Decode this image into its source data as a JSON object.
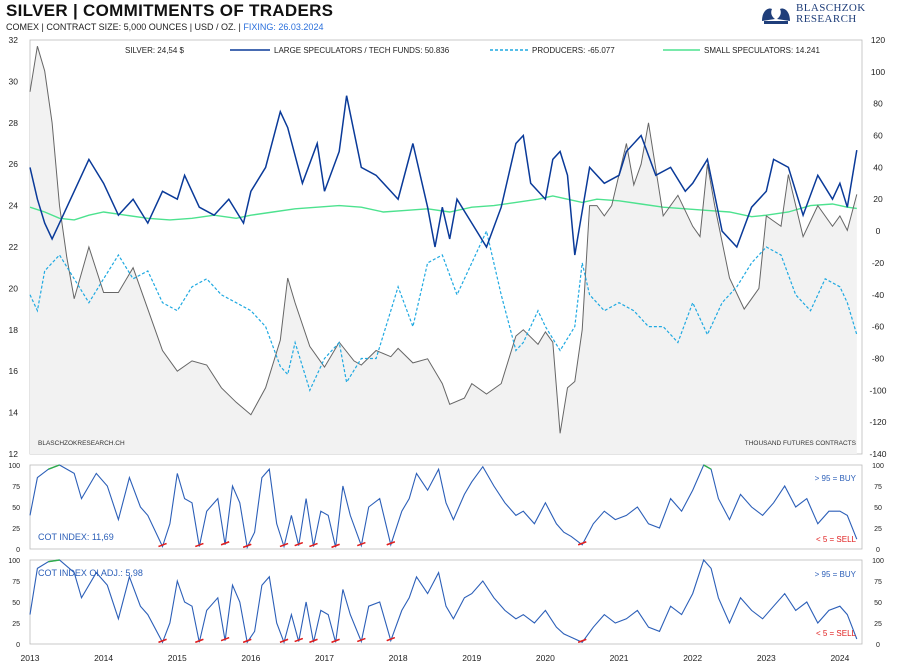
{
  "header": {
    "title": "SILVER | COMMITMENTS OF TRADERS",
    "subtitle_prefix": "COMEX | CONTRACT SIZE: 5,000 OUNCES | USD / OZ. |",
    "fixing": "FIXING: 26.03.2024"
  },
  "logo": {
    "line1": "BLASCHZOK",
    "line2": "RESEARCH",
    "icon": "lion-crest-icon"
  },
  "colors": {
    "silver": "#666666",
    "large_specs": "#0a3a99",
    "producers": "#1fa9e1",
    "small_specs": "#4de28f",
    "buy": "#2fae4a",
    "sell": "#e02020",
    "index": "#2c5fb8"
  },
  "chart_data": [
    {
      "type": "line",
      "title": "",
      "left_axis": {
        "ylim": [
          12,
          32
        ],
        "ticks": [
          "32",
          "30",
          "28",
          "26",
          "24",
          "22",
          "20",
          "18",
          "16",
          "14",
          "12"
        ]
      },
      "right_axis": {
        "ylim": [
          -140,
          120
        ],
        "ticks": [
          "120",
          "100",
          "80",
          "60",
          "40",
          "20",
          "0",
          "-20",
          "-40",
          "-60",
          "-80",
          "-100",
          "-120",
          "-140"
        ]
      },
      "x_ticks": [
        "2013",
        "2014",
        "2015",
        "2016",
        "2017",
        "2018",
        "2019",
        "2020",
        "2021",
        "2022",
        "2023",
        "2024"
      ],
      "legend": {
        "silver": "SILVER: 24,54 $",
        "large": "LARGE SPECULATORS / TECH FUNDS: 50.836",
        "producers": "PRODUCERS: -65.077",
        "small": "SMALL SPECULATORS: 14.241"
      },
      "note_left": "BLASCHZOKRESEARCH.CH",
      "note_right": "THOUSAND  FUTURES CONTRACTS",
      "series": [
        {
          "name": "SILVER",
          "axis": "left",
          "x": [
            2013.0,
            2013.1,
            2013.2,
            2013.3,
            2013.4,
            2013.5,
            2013.6,
            2013.8,
            2014.0,
            2014.2,
            2014.4,
            2014.6,
            2014.8,
            2015.0,
            2015.2,
            2015.4,
            2015.6,
            2015.8,
            2016.0,
            2016.2,
            2016.4,
            2016.5,
            2016.6,
            2016.8,
            2017.0,
            2017.2,
            2017.4,
            2017.5,
            2017.7,
            2017.9,
            2018.0,
            2018.2,
            2018.4,
            2018.6,
            2018.7,
            2018.9,
            2019.0,
            2019.2,
            2019.4,
            2019.6,
            2019.7,
            2019.9,
            2020.0,
            2020.1,
            2020.2,
            2020.3,
            2020.4,
            2020.5,
            2020.6,
            2020.7,
            2020.8,
            2020.9,
            2021.0,
            2021.1,
            2021.2,
            2021.3,
            2021.4,
            2021.6,
            2021.8,
            2022.0,
            2022.1,
            2022.2,
            2022.3,
            2022.5,
            2022.7,
            2022.9,
            2023.0,
            2023.2,
            2023.3,
            2023.5,
            2023.7,
            2023.9,
            2024.0,
            2024.1,
            2024.23
          ],
          "values": [
            29.5,
            31.7,
            30.5,
            28.0,
            24.0,
            21.5,
            19.5,
            22.0,
            19.8,
            19.8,
            21.0,
            19.0,
            17.0,
            16.0,
            16.5,
            16.3,
            15.2,
            14.5,
            13.9,
            15.2,
            17.5,
            20.5,
            19.3,
            17.2,
            16.2,
            17.4,
            16.5,
            16.3,
            17.0,
            16.7,
            17.1,
            16.4,
            16.6,
            15.4,
            14.4,
            14.7,
            15.4,
            14.9,
            15.4,
            17.7,
            18.0,
            17.3,
            17.9,
            17.4,
            13.0,
            15.2,
            15.5,
            18.0,
            24.0,
            24.0,
            23.5,
            24.0,
            25.5,
            27.0,
            25.0,
            26.0,
            28.0,
            23.5,
            24.5,
            23.0,
            22.5,
            26.0,
            24.0,
            20.5,
            19.0,
            20.0,
            23.5,
            23.0,
            25.5,
            22.5,
            24.0,
            23.0,
            23.5,
            22.8,
            24.54
          ]
        },
        {
          "name": "LARGE SPECULATORS / TECH FUNDS",
          "axis": "right",
          "x": [
            2013.0,
            2013.1,
            2013.2,
            2013.3,
            2013.4,
            2013.6,
            2013.8,
            2014.0,
            2014.2,
            2014.4,
            2014.6,
            2014.8,
            2015.0,
            2015.1,
            2015.3,
            2015.5,
            2015.7,
            2015.9,
            2016.0,
            2016.2,
            2016.4,
            2016.5,
            2016.7,
            2016.9,
            2017.0,
            2017.2,
            2017.3,
            2017.5,
            2017.7,
            2017.9,
            2018.0,
            2018.2,
            2018.4,
            2018.5,
            2018.6,
            2018.7,
            2018.8,
            2019.0,
            2019.2,
            2019.4,
            2019.6,
            2019.7,
            2019.8,
            2020.0,
            2020.1,
            2020.2,
            2020.3,
            2020.4,
            2020.6,
            2020.8,
            2021.0,
            2021.1,
            2021.3,
            2021.5,
            2021.7,
            2021.9,
            2022.0,
            2022.2,
            2022.4,
            2022.6,
            2022.8,
            2023.0,
            2023.1,
            2023.3,
            2023.5,
            2023.7,
            2023.9,
            2024.0,
            2024.1,
            2024.23
          ],
          "values": [
            40,
            20,
            5,
            -5,
            5,
            25,
            45,
            30,
            10,
            20,
            5,
            25,
            20,
            35,
            15,
            10,
            20,
            5,
            25,
            40,
            75,
            65,
            30,
            55,
            25,
            50,
            85,
            40,
            35,
            25,
            20,
            55,
            15,
            -10,
            15,
            -5,
            20,
            5,
            -10,
            15,
            55,
            60,
            30,
            20,
            45,
            50,
            35,
            -15,
            40,
            30,
            35,
            50,
            60,
            35,
            40,
            25,
            30,
            45,
            0,
            -10,
            15,
            25,
            45,
            40,
            10,
            35,
            20,
            30,
            15,
            50.836
          ]
        },
        {
          "name": "PRODUCERS",
          "axis": "right",
          "x": [
            2013.0,
            2013.1,
            2013.2,
            2013.4,
            2013.6,
            2013.8,
            2014.0,
            2014.2,
            2014.4,
            2014.6,
            2014.8,
            2015.0,
            2015.2,
            2015.4,
            2015.6,
            2015.8,
            2016.0,
            2016.2,
            2016.4,
            2016.5,
            2016.6,
            2016.8,
            2017.0,
            2017.2,
            2017.3,
            2017.5,
            2017.7,
            2017.9,
            2018.0,
            2018.2,
            2018.4,
            2018.6,
            2018.8,
            2019.0,
            2019.2,
            2019.4,
            2019.6,
            2019.7,
            2019.9,
            2020.0,
            2020.2,
            2020.4,
            2020.5,
            2020.6,
            2020.8,
            2021.0,
            2021.2,
            2021.4,
            2021.6,
            2021.8,
            2022.0,
            2022.2,
            2022.4,
            2022.6,
            2022.8,
            2023.0,
            2023.2,
            2023.4,
            2023.6,
            2023.8,
            2024.0,
            2024.1,
            2024.23
          ],
          "values": [
            -40,
            -50,
            -25,
            -15,
            -30,
            -45,
            -30,
            -15,
            -30,
            -25,
            -45,
            -50,
            -35,
            -30,
            -40,
            -45,
            -50,
            -60,
            -85,
            -90,
            -70,
            -100,
            -80,
            -70,
            -95,
            -80,
            -80,
            -50,
            -35,
            -60,
            -20,
            -15,
            -40,
            -20,
            0,
            -40,
            -75,
            -70,
            -50,
            -60,
            -75,
            -60,
            -20,
            -40,
            -50,
            -45,
            -50,
            -60,
            -60,
            -70,
            -45,
            -65,
            -45,
            -35,
            -20,
            -10,
            -15,
            -40,
            -50,
            -30,
            -35,
            -45,
            -65.077
          ]
        },
        {
          "name": "SMALL SPECULATORS",
          "axis": "right",
          "x": [
            2013.0,
            2013.2,
            2013.4,
            2013.6,
            2013.8,
            2014.0,
            2014.3,
            2014.6,
            2014.9,
            2015.2,
            2015.5,
            2015.8,
            2016.0,
            2016.3,
            2016.6,
            2016.9,
            2017.2,
            2017.5,
            2017.8,
            2018.1,
            2018.4,
            2018.7,
            2019.0,
            2019.3,
            2019.6,
            2019.9,
            2020.1,
            2020.3,
            2020.5,
            2020.7,
            2021.0,
            2021.3,
            2021.6,
            2021.9,
            2022.2,
            2022.5,
            2022.8,
            2023.0,
            2023.3,
            2023.6,
            2023.9,
            2024.1,
            2024.23
          ],
          "values": [
            15,
            12,
            8,
            7,
            10,
            12,
            10,
            8,
            7,
            8,
            10,
            8,
            10,
            12,
            14,
            15,
            16,
            15,
            12,
            13,
            14,
            12,
            15,
            16,
            18,
            20,
            22,
            20,
            18,
            20,
            19,
            17,
            15,
            14,
            13,
            12,
            9,
            10,
            12,
            16,
            17,
            15,
            14.241
          ]
        }
      ]
    },
    {
      "type": "line",
      "title": "COT INDEX: 11,69",
      "ylim": [
        0,
        100
      ],
      "y_ticks": [
        "100",
        "75",
        "50",
        "25",
        "0"
      ],
      "buy_label": "> 95 = BUY",
      "sell_label": "< 5 = SELL",
      "series": [
        {
          "name": "COT INDEX",
          "x": [
            2013.0,
            2013.1,
            2013.25,
            2013.4,
            2013.6,
            2013.7,
            2013.9,
            2014.05,
            2014.2,
            2014.35,
            2014.5,
            2014.6,
            2014.8,
            2014.9,
            2015.0,
            2015.1,
            2015.2,
            2015.3,
            2015.4,
            2015.55,
            2015.65,
            2015.75,
            2015.85,
            2015.95,
            2016.05,
            2016.15,
            2016.25,
            2016.35,
            2016.45,
            2016.55,
            2016.65,
            2016.75,
            2016.85,
            2016.95,
            2017.05,
            2017.15,
            2017.25,
            2017.35,
            2017.5,
            2017.6,
            2017.75,
            2017.9,
            2018.05,
            2018.15,
            2018.25,
            2018.4,
            2018.55,
            2018.65,
            2018.75,
            2018.9,
            2019.0,
            2019.15,
            2019.3,
            2019.45,
            2019.6,
            2019.7,
            2019.85,
            2020.0,
            2020.15,
            2020.25,
            2020.35,
            2020.5,
            2020.65,
            2020.8,
            2020.95,
            2021.1,
            2021.25,
            2021.4,
            2021.55,
            2021.7,
            2021.85,
            2022.0,
            2022.15,
            2022.25,
            2022.35,
            2022.5,
            2022.65,
            2022.8,
            2022.95,
            2023.1,
            2023.25,
            2023.4,
            2023.55,
            2023.7,
            2023.85,
            2024.0,
            2024.1,
            2024.23
          ],
          "values": [
            40,
            85,
            95,
            100,
            90,
            60,
            90,
            75,
            35,
            85,
            50,
            40,
            3,
            30,
            90,
            60,
            55,
            3,
            45,
            60,
            5,
            75,
            55,
            2,
            20,
            85,
            95,
            30,
            3,
            40,
            4,
            60,
            3,
            45,
            40,
            2,
            75,
            40,
            4,
            50,
            60,
            5,
            45,
            60,
            90,
            70,
            95,
            55,
            35,
            65,
            80,
            98,
            75,
            55,
            40,
            45,
            30,
            55,
            30,
            20,
            15,
            5,
            30,
            45,
            35,
            40,
            50,
            30,
            25,
            60,
            45,
            70,
            100,
            95,
            60,
            35,
            65,
            50,
            40,
            55,
            75,
            50,
            60,
            30,
            45,
            45,
            40,
            11.69
          ]
        }
      ]
    },
    {
      "type": "line",
      "title": "COT INDEX OI ADJ.: 5,98",
      "ylim": [
        0,
        100
      ],
      "y_ticks": [
        "100",
        "75",
        "50",
        "25",
        "0"
      ],
      "buy_label": "> 95 = BUY",
      "sell_label": "< 5 = SELL",
      "series": [
        {
          "name": "COT INDEX OI ADJ.",
          "x": [
            2013.0,
            2013.1,
            2013.25,
            2013.4,
            2013.6,
            2013.7,
            2013.9,
            2014.05,
            2014.2,
            2014.35,
            2014.5,
            2014.6,
            2014.8,
            2014.9,
            2015.0,
            2015.1,
            2015.2,
            2015.3,
            2015.4,
            2015.55,
            2015.65,
            2015.75,
            2015.85,
            2015.95,
            2016.05,
            2016.15,
            2016.25,
            2016.35,
            2016.45,
            2016.55,
            2016.65,
            2016.75,
            2016.85,
            2016.95,
            2017.05,
            2017.15,
            2017.25,
            2017.35,
            2017.5,
            2017.6,
            2017.75,
            2017.9,
            2018.05,
            2018.15,
            2018.25,
            2018.4,
            2018.55,
            2018.65,
            2018.75,
            2018.9,
            2019.0,
            2019.15,
            2019.3,
            2019.45,
            2019.6,
            2019.7,
            2019.85,
            2020.0,
            2020.15,
            2020.25,
            2020.35,
            2020.5,
            2020.65,
            2020.8,
            2020.95,
            2021.1,
            2021.25,
            2021.4,
            2021.55,
            2021.7,
            2021.85,
            2022.0,
            2022.15,
            2022.25,
            2022.35,
            2022.5,
            2022.65,
            2022.8,
            2022.95,
            2023.1,
            2023.25,
            2023.4,
            2023.55,
            2023.7,
            2023.85,
            2024.0,
            2024.1,
            2024.23
          ],
          "values": [
            35,
            90,
            98,
            100,
            85,
            55,
            85,
            70,
            30,
            80,
            45,
            35,
            2,
            25,
            75,
            50,
            45,
            2,
            40,
            55,
            4,
            70,
            50,
            2,
            15,
            70,
            80,
            25,
            2,
            35,
            3,
            50,
            2,
            40,
            35,
            2,
            65,
            35,
            3,
            45,
            50,
            4,
            40,
            55,
            80,
            60,
            85,
            45,
            30,
            55,
            60,
            75,
            55,
            40,
            30,
            35,
            25,
            40,
            20,
            12,
            8,
            2,
            20,
            35,
            25,
            30,
            40,
            20,
            15,
            45,
            35,
            60,
            100,
            90,
            55,
            25,
            55,
            40,
            30,
            45,
            60,
            40,
            50,
            25,
            40,
            45,
            35,
            5.98
          ]
        }
      ]
    }
  ]
}
